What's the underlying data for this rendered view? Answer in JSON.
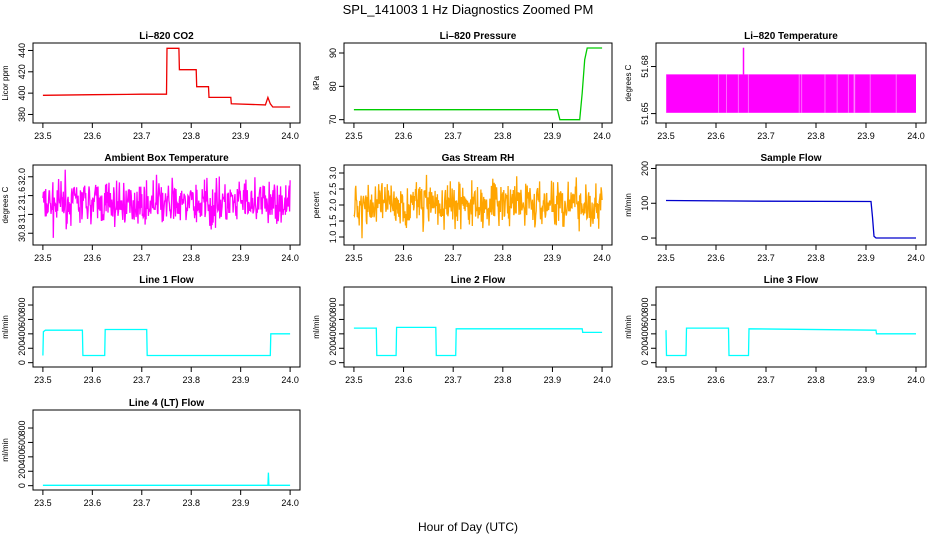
{
  "page_title": "SPL_141003 1 Hz Diagnostics Zoomed PM",
  "common_xlabel": "Hour of Day (UTC)",
  "chart_data": [
    {
      "type": "line",
      "title": "Li–820 CO2",
      "ylabel": "Licor ppm",
      "color": "#ee0000",
      "xlim": [
        23.48,
        24.02
      ],
      "ylim": [
        372,
        447
      ],
      "xticks": [
        23.5,
        23.6,
        23.7,
        23.8,
        23.9,
        24.0
      ],
      "xtick_labels": [
        "23.5",
        "23.6",
        "23.7",
        "23.8",
        "23.9",
        "24.0"
      ],
      "yticks": [
        380,
        400,
        420,
        440
      ],
      "ytick_labels": [
        "380",
        "400",
        "420",
        "440"
      ],
      "series": [
        {
          "name": "CO2",
          "x": [
            23.5,
            23.6,
            23.7,
            23.75,
            23.751,
            23.775,
            23.776,
            23.81,
            23.811,
            23.835,
            23.836,
            23.88,
            23.881,
            23.95,
            23.955,
            23.96,
            23.965,
            24.0
          ],
          "y": [
            398,
            398.5,
            399,
            399,
            442,
            442,
            422,
            422,
            406,
            406,
            396,
            396,
            390,
            389,
            396,
            390,
            387,
            387
          ]
        }
      ]
    },
    {
      "type": "line",
      "title": "Li–820 Pressure",
      "ylabel": "kPa",
      "color": "#00cc00",
      "xlim": [
        23.48,
        24.02
      ],
      "ylim": [
        69,
        93
      ],
      "xticks": [
        23.5,
        23.6,
        23.7,
        23.8,
        23.9,
        24.0
      ],
      "xtick_labels": [
        "23.5",
        "23.6",
        "23.7",
        "23.8",
        "23.9",
        "24.0"
      ],
      "yticks": [
        70,
        80,
        90
      ],
      "ytick_labels": [
        "70",
        "80",
        "90"
      ],
      "series": [
        {
          "name": "Pressure",
          "x": [
            23.5,
            23.91,
            23.915,
            23.955,
            23.96,
            23.965,
            23.97,
            24.0
          ],
          "y": [
            73,
            73,
            70,
            70,
            78,
            88,
            91.5,
            91.5
          ]
        }
      ]
    },
    {
      "type": "line",
      "title": "Li–820 Temperature",
      "ylabel": "degrees C",
      "color": "#ff00ff",
      "xlim": [
        23.48,
        24.02
      ],
      "ylim": [
        51.644,
        51.695
      ],
      "xticks": [
        23.5,
        23.6,
        23.7,
        23.8,
        23.9,
        24.0
      ],
      "xtick_labels": [
        "23.5",
        "23.6",
        "23.7",
        "23.8",
        "23.9",
        "24.0"
      ],
      "yticks": [
        51.65,
        51.68
      ],
      "ytick_labels": [
        "51.65",
        "51.68"
      ],
      "series": [
        {
          "name": "Temperature",
          "x": [
            23.5,
            24.0
          ],
          "y": [
            51.6505,
            51.675
          ],
          "band": true,
          "spike_x": 23.655,
          "spike_y": 51.692
        }
      ]
    },
    {
      "type": "line",
      "title": "Ambient Box Temperature",
      "ylabel": "degrees C",
      "color": "#ff00ff",
      "xlim": [
        23.48,
        24.02
      ],
      "ylim": [
        30.55,
        32.25
      ],
      "xticks": [
        23.5,
        23.6,
        23.7,
        23.8,
        23.9,
        24.0
      ],
      "xtick_labels": [
        "23.5",
        "23.6",
        "23.7",
        "23.8",
        "23.9",
        "24.0"
      ],
      "yticks": [
        30.8,
        31.2,
        31.6,
        32.0
      ],
      "ytick_labels": [
        "30.8",
        "31.2",
        "31.6",
        "32.0"
      ],
      "series": [
        {
          "name": "Box Temperature",
          "x": [
            23.5,
            24.0
          ],
          "y": [
            30.7,
            32.15
          ],
          "noise": true
        }
      ]
    },
    {
      "type": "line",
      "title": "Gas Stream RH",
      "ylabel": "percent",
      "color": "#ffa500",
      "xlim": [
        23.48,
        24.02
      ],
      "ylim": [
        0.75,
        3.25
      ],
      "xticks": [
        23.5,
        23.6,
        23.7,
        23.8,
        23.9,
        24.0
      ],
      "xtick_labels": [
        "23.5",
        "23.6",
        "23.7",
        "23.8",
        "23.9",
        "24.0"
      ],
      "yticks": [
        1.0,
        1.5,
        2.0,
        2.5,
        3.0
      ],
      "ytick_labels": [
        "1.0",
        "1.5",
        "2.0",
        "2.5",
        "3.0"
      ],
      "series": [
        {
          "name": "RH",
          "x": [
            23.5,
            24.0
          ],
          "y": [
            0.9,
            3.15
          ],
          "noise": true
        }
      ]
    },
    {
      "type": "line",
      "title": "Sample Flow",
      "ylabel": "ml/min",
      "color": "#0000cc",
      "xlim": [
        23.48,
        24.02
      ],
      "ylim": [
        -20,
        210
      ],
      "xticks": [
        23.5,
        23.6,
        23.7,
        23.8,
        23.9,
        24.0
      ],
      "xtick_labels": [
        "23.5",
        "23.6",
        "23.7",
        "23.8",
        "23.9",
        "24.0"
      ],
      "yticks": [
        0,
        100,
        200
      ],
      "ytick_labels": [
        "0",
        "100",
        "200"
      ],
      "series": [
        {
          "name": "Sample Flow",
          "x": [
            23.5,
            23.7,
            23.91,
            23.913,
            23.916,
            23.92,
            24.0
          ],
          "y": [
            108,
            106,
            105,
            60,
            5,
            0,
            0
          ]
        }
      ]
    },
    {
      "type": "line",
      "title": "Line 1 Flow",
      "ylabel": "ml/min",
      "color": "#00ffff",
      "xlim": [
        23.48,
        24.02
      ],
      "ylim": [
        -60,
        1050
      ],
      "xticks": [
        23.5,
        23.6,
        23.7,
        23.8,
        23.9,
        24.0
      ],
      "xtick_labels": [
        "23.5",
        "23.6",
        "23.7",
        "23.8",
        "23.9",
        "24.0"
      ],
      "yticks": [
        0,
        200,
        400,
        600,
        800
      ],
      "ytick_labels": [
        "0",
        "200",
        "400",
        "600",
        "800"
      ],
      "series": [
        {
          "name": "Line 1",
          "x": [
            23.5,
            23.501,
            23.505,
            23.58,
            23.581,
            23.625,
            23.626,
            23.71,
            23.711,
            23.96,
            23.961,
            24.0
          ],
          "y": [
            100,
            430,
            450,
            450,
            100,
            100,
            460,
            460,
            100,
            100,
            400,
            400
          ]
        }
      ]
    },
    {
      "type": "line",
      "title": "Line 2 Flow",
      "ylabel": "ml/min",
      "color": "#00ffff",
      "xlim": [
        23.48,
        24.02
      ],
      "ylim": [
        -60,
        1050
      ],
      "xticks": [
        23.5,
        23.6,
        23.7,
        23.8,
        23.9,
        24.0
      ],
      "xtick_labels": [
        "23.5",
        "23.6",
        "23.7",
        "23.8",
        "23.9",
        "24.0"
      ],
      "yticks": [
        0,
        200,
        400,
        600,
        800
      ],
      "ytick_labels": [
        "0",
        "200",
        "400",
        "600",
        "800"
      ],
      "series": [
        {
          "name": "Line 2",
          "x": [
            23.5,
            23.545,
            23.546,
            23.585,
            23.586,
            23.665,
            23.666,
            23.705,
            23.706,
            23.96,
            23.961,
            24.0
          ],
          "y": [
            480,
            480,
            100,
            100,
            490,
            490,
            100,
            100,
            470,
            470,
            420,
            420
          ]
        }
      ]
    },
    {
      "type": "line",
      "title": "Line 3 Flow",
      "ylabel": "ml/min",
      "color": "#00ffff",
      "xlim": [
        23.48,
        24.02
      ],
      "ylim": [
        -60,
        1050
      ],
      "xticks": [
        23.5,
        23.6,
        23.7,
        23.8,
        23.9,
        24.0
      ],
      "xtick_labels": [
        "23.5",
        "23.6",
        "23.7",
        "23.8",
        "23.9",
        "24.0"
      ],
      "yticks": [
        0,
        200,
        400,
        600,
        800
      ],
      "ytick_labels": [
        "0",
        "200",
        "400",
        "600",
        "800"
      ],
      "series": [
        {
          "name": "Line 3",
          "x": [
            23.5,
            23.501,
            23.54,
            23.541,
            23.58,
            23.625,
            23.626,
            23.665,
            23.666,
            23.92,
            23.921,
            24.0
          ],
          "y": [
            450,
            100,
            100,
            480,
            480,
            480,
            100,
            100,
            470,
            450,
            400,
            400
          ]
        }
      ]
    },
    {
      "type": "line",
      "title": "Line 4 (LT) Flow",
      "ylabel": "ml/min",
      "color": "#00ffff",
      "xlim": [
        23.48,
        24.02
      ],
      "ylim": [
        -60,
        1050
      ],
      "xticks": [
        23.5,
        23.6,
        23.7,
        23.8,
        23.9,
        24.0
      ],
      "xtick_labels": [
        "23.5",
        "23.6",
        "23.7",
        "23.8",
        "23.9",
        "24.0"
      ],
      "yticks": [
        0,
        200,
        400,
        600,
        800
      ],
      "ytick_labels": [
        "0",
        "200",
        "400",
        "600",
        "800"
      ],
      "series": [
        {
          "name": "Line 4",
          "x": [
            23.5,
            23.955,
            23.956,
            23.957,
            23.958,
            24.0
          ],
          "y": [
            5,
            5,
            180,
            5,
            5,
            5
          ]
        }
      ]
    }
  ]
}
